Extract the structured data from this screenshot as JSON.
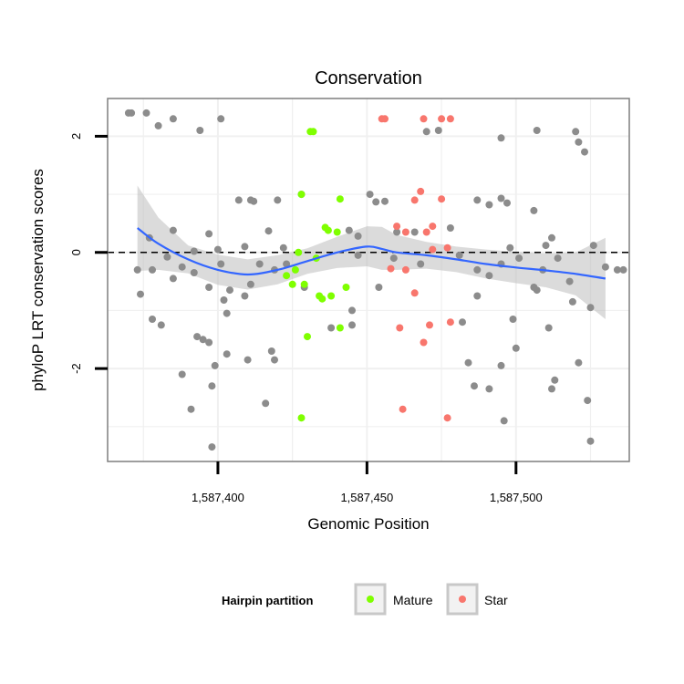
{
  "chart_data": {
    "type": "scatter",
    "title": "Conservation",
    "xlabel": "Genomic Position",
    "ylabel": "phyloP LRT conservation scores",
    "xlim": [
      1587363,
      1587538
    ],
    "ylim": [
      -3.6,
      2.65
    ],
    "x_ticks": [
      1587400,
      1587450,
      1587500
    ],
    "x_tick_labels": [
      "1,587,400",
      "1,587,450",
      "1,587,500"
    ],
    "y_ticks": [
      -2,
      0,
      2
    ],
    "y_tick_labels": [
      "-2",
      "0",
      "2"
    ],
    "grid": true,
    "reference_line": {
      "y": 0,
      "style": "dashed",
      "color": "#000000"
    },
    "legend": {
      "title": "Hairpin partition",
      "position": "bottom",
      "entries": [
        {
          "label": "Mature",
          "color": "#7FFF00"
        },
        {
          "label": "Star",
          "color": "#F8766D"
        }
      ]
    },
    "colors": {
      "other": "#8C8C8C",
      "mature": "#7FFF00",
      "star": "#F8766D",
      "smooth": "#3366FF",
      "band": "#BDBDBD"
    },
    "series": [
      {
        "group": "other",
        "points": [
          [
            1587370,
            2.4
          ],
          [
            1587371,
            2.4
          ],
          [
            1587376,
            2.4
          ],
          [
            1587380,
            2.18
          ],
          [
            1587385,
            2.3
          ],
          [
            1587394,
            2.1
          ],
          [
            1587401,
            2.3
          ],
          [
            1587474,
            2.1
          ],
          [
            1587470,
            2.08
          ],
          [
            1587507,
            2.1
          ],
          [
            1587520,
            2.08
          ],
          [
            1587521,
            1.9
          ],
          [
            1587523,
            1.73
          ],
          [
            1587495,
            1.97
          ],
          [
            1587407,
            0.9
          ],
          [
            1587411,
            0.9
          ],
          [
            1587412,
            0.88
          ],
          [
            1587420,
            0.9
          ],
          [
            1587428,
            1.0
          ],
          [
            1587451,
            1.0
          ],
          [
            1587453,
            0.87
          ],
          [
            1587456,
            0.88
          ],
          [
            1587487,
            0.9
          ],
          [
            1587491,
            0.82
          ],
          [
            1587495,
            0.93
          ],
          [
            1587497,
            0.85
          ],
          [
            1587506,
            0.72
          ],
          [
            1587377,
            0.25
          ],
          [
            1587385,
            0.38
          ],
          [
            1587392,
            0.02
          ],
          [
            1587397,
            0.32
          ],
          [
            1587400,
            0.05
          ],
          [
            1587409,
            0.1
          ],
          [
            1587417,
            0.37
          ],
          [
            1587422,
            0.08
          ],
          [
            1587444,
            0.38
          ],
          [
            1587447,
            0.28
          ],
          [
            1587460,
            0.35
          ],
          [
            1587466,
            0.35
          ],
          [
            1587478,
            0.42
          ],
          [
            1587498,
            0.08
          ],
          [
            1587510,
            0.12
          ],
          [
            1587512,
            0.25
          ],
          [
            1587526,
            0.12
          ],
          [
            1587373,
            -0.3
          ],
          [
            1587378,
            -0.3
          ],
          [
            1587383,
            -0.08
          ],
          [
            1587385,
            -0.45
          ],
          [
            1587388,
            -0.25
          ],
          [
            1587392,
            -0.35
          ],
          [
            1587397,
            -0.6
          ],
          [
            1587401,
            -0.2
          ],
          [
            1587404,
            -0.65
          ],
          [
            1587411,
            -0.55
          ],
          [
            1587414,
            -0.2
          ],
          [
            1587419,
            -0.3
          ],
          [
            1587423,
            -0.2
          ],
          [
            1587447,
            -0.05
          ],
          [
            1587459,
            -0.1
          ],
          [
            1587468,
            -0.2
          ],
          [
            1587481,
            -0.05
          ],
          [
            1587487,
            -0.3
          ],
          [
            1587491,
            -0.4
          ],
          [
            1587495,
            -0.2
          ],
          [
            1587501,
            -0.1
          ],
          [
            1587506,
            -0.6
          ],
          [
            1587509,
            -0.3
          ],
          [
            1587514,
            -0.1
          ],
          [
            1587518,
            -0.5
          ],
          [
            1587530,
            -0.25
          ],
          [
            1587534,
            -0.3
          ],
          [
            1587536,
            -0.3
          ],
          [
            1587374,
            -0.72
          ],
          [
            1587381,
            -1.25
          ],
          [
            1587378,
            -1.15
          ],
          [
            1587393,
            -1.45
          ],
          [
            1587395,
            -1.5
          ],
          [
            1587397,
            -1.55
          ],
          [
            1587402,
            -0.82
          ],
          [
            1587403,
            -1.05
          ],
          [
            1587409,
            -0.75
          ],
          [
            1587418,
            -1.7
          ],
          [
            1587429,
            -0.6
          ],
          [
            1587438,
            -1.3
          ],
          [
            1587445,
            -1.25
          ],
          [
            1587454,
            -0.6
          ],
          [
            1587482,
            -1.2
          ],
          [
            1587487,
            -0.75
          ],
          [
            1587499,
            -1.15
          ],
          [
            1587507,
            -0.65
          ],
          [
            1587511,
            -1.3
          ],
          [
            1587519,
            -0.85
          ],
          [
            1587525,
            -0.95
          ],
          [
            1587388,
            -2.1
          ],
          [
            1587398,
            -2.3
          ],
          [
            1587399,
            -1.95
          ],
          [
            1587403,
            -1.75
          ],
          [
            1587410,
            -1.85
          ],
          [
            1587416,
            -2.6
          ],
          [
            1587419,
            -1.85
          ],
          [
            1587391,
            -2.7
          ],
          [
            1587398,
            -3.35
          ],
          [
            1587484,
            -1.9
          ],
          [
            1587486,
            -2.3
          ],
          [
            1587491,
            -2.35
          ],
          [
            1587495,
            -1.95
          ],
          [
            1587496,
            -2.9
          ],
          [
            1587500,
            -1.65
          ],
          [
            1587512,
            -2.35
          ],
          [
            1587513,
            -2.2
          ],
          [
            1587521,
            -1.9
          ],
          [
            1587524,
            -2.55
          ],
          [
            1587525,
            -3.25
          ],
          [
            1587445,
            -1.0
          ]
        ]
      },
      {
        "group": "mature",
        "name": "Mature",
        "points": [
          [
            1587431,
            2.08
          ],
          [
            1587432,
            2.08
          ],
          [
            1587428,
            1.0
          ],
          [
            1587441,
            0.92
          ],
          [
            1587436,
            0.43
          ],
          [
            1587437,
            0.38
          ],
          [
            1587440,
            0.35
          ],
          [
            1587427,
            0.0
          ],
          [
            1587426,
            -0.3
          ],
          [
            1587425,
            -0.55
          ],
          [
            1587429,
            -0.55
          ],
          [
            1587434,
            -0.75
          ],
          [
            1587435,
            -0.8
          ],
          [
            1587438,
            -0.75
          ],
          [
            1587443,
            -0.6
          ],
          [
            1587430,
            -1.45
          ],
          [
            1587441,
            -1.3
          ],
          [
            1587428,
            -2.85
          ],
          [
            1587433,
            -0.1
          ],
          [
            1587423,
            -0.4
          ]
        ]
      },
      {
        "group": "star",
        "name": "Star",
        "points": [
          [
            1587455,
            2.3
          ],
          [
            1587456,
            2.3
          ],
          [
            1587469,
            2.3
          ],
          [
            1587475,
            2.3
          ],
          [
            1587478,
            2.3
          ],
          [
            1587468,
            1.05
          ],
          [
            1587475,
            0.92
          ],
          [
            1587466,
            0.9
          ],
          [
            1587472,
            0.45
          ],
          [
            1587470,
            0.35
          ],
          [
            1587460,
            0.45
          ],
          [
            1587463,
            0.35
          ],
          [
            1587477,
            0.08
          ],
          [
            1587472,
            0.05
          ],
          [
            1587463,
            -0.3
          ],
          [
            1587458,
            -0.28
          ],
          [
            1587466,
            -0.7
          ],
          [
            1587461,
            -1.3
          ],
          [
            1587469,
            -1.55
          ],
          [
            1587471,
            -1.25
          ],
          [
            1587478,
            -1.2
          ],
          [
            1587462,
            -2.7
          ],
          [
            1587477,
            -2.85
          ]
        ]
      }
    ],
    "smooth_curve": [
      [
        1587373,
        0.42
      ],
      [
        1587380,
        0.15
      ],
      [
        1587390,
        -0.12
      ],
      [
        1587400,
        -0.3
      ],
      [
        1587410,
        -0.38
      ],
      [
        1587420,
        -0.3
      ],
      [
        1587430,
        -0.15
      ],
      [
        1587440,
        0.0
      ],
      [
        1587450,
        0.1
      ],
      [
        1587455,
        0.06
      ],
      [
        1587460,
        0.0
      ],
      [
        1587470,
        -0.05
      ],
      [
        1587480,
        -0.12
      ],
      [
        1587490,
        -0.2
      ],
      [
        1587500,
        -0.26
      ],
      [
        1587510,
        -0.31
      ],
      [
        1587520,
        -0.37
      ],
      [
        1587530,
        -0.45
      ]
    ],
    "smooth_upper": [
      [
        1587373,
        1.15
      ],
      [
        1587380,
        0.6
      ],
      [
        1587390,
        0.12
      ],
      [
        1587400,
        -0.04
      ],
      [
        1587410,
        -0.12
      ],
      [
        1587420,
        -0.05
      ],
      [
        1587430,
        0.07
      ],
      [
        1587440,
        0.27
      ],
      [
        1587450,
        0.45
      ],
      [
        1587455,
        0.44
      ],
      [
        1587460,
        0.3
      ],
      [
        1587470,
        0.18
      ],
      [
        1587480,
        0.1
      ],
      [
        1587490,
        0.05
      ],
      [
        1587500,
        0.01
      ],
      [
        1587510,
        -0.02
      ],
      [
        1587520,
        0.0
      ],
      [
        1587530,
        0.25
      ]
    ],
    "smooth_lower": [
      [
        1587373,
        -0.32
      ],
      [
        1587380,
        -0.3
      ],
      [
        1587390,
        -0.36
      ],
      [
        1587400,
        -0.56
      ],
      [
        1587410,
        -0.64
      ],
      [
        1587420,
        -0.55
      ],
      [
        1587430,
        -0.37
      ],
      [
        1587440,
        -0.27
      ],
      [
        1587450,
        -0.24
      ],
      [
        1587455,
        -0.3
      ],
      [
        1587460,
        -0.3
      ],
      [
        1587470,
        -0.28
      ],
      [
        1587480,
        -0.34
      ],
      [
        1587490,
        -0.45
      ],
      [
        1587500,
        -0.53
      ],
      [
        1587510,
        -0.6
      ],
      [
        1587520,
        -0.74
      ],
      [
        1587530,
        -1.15
      ]
    ]
  }
}
